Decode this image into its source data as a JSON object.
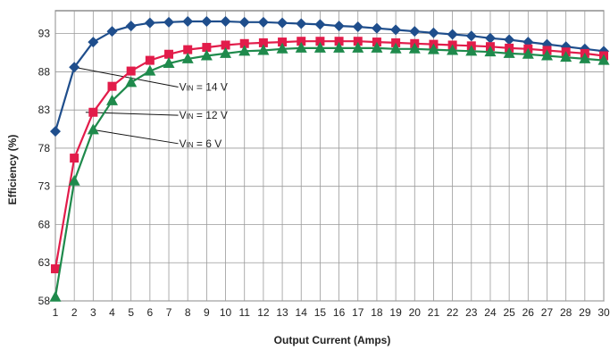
{
  "chart_data": {
    "type": "line",
    "title": "",
    "xlabel": "Output Current (Amps)",
    "ylabel": "Efficiency (%)",
    "x": [
      1,
      2,
      3,
      4,
      5,
      6,
      7,
      8,
      9,
      10,
      11,
      12,
      13,
      14,
      15,
      16,
      17,
      18,
      19,
      20,
      21,
      22,
      23,
      24,
      25,
      26,
      27,
      28,
      29,
      30
    ],
    "xlim": [
      1,
      30
    ],
    "ylim": [
      58,
      96
    ],
    "yticks": [
      58,
      63,
      68,
      73,
      78,
      83,
      88,
      93
    ],
    "grid": true,
    "series": [
      {
        "name": "VIN = 14 V",
        "color": "#1f4e8c",
        "marker": "diamond",
        "values": [
          80.2,
          88.6,
          91.9,
          93.3,
          94.0,
          94.4,
          94.5,
          94.6,
          94.6,
          94.6,
          94.5,
          94.5,
          94.4,
          94.3,
          94.2,
          94.0,
          93.9,
          93.7,
          93.5,
          93.3,
          93.1,
          92.9,
          92.7,
          92.4,
          92.2,
          91.9,
          91.6,
          91.3,
          91.0,
          90.7
        ]
      },
      {
        "name": "VIN = 12 V",
        "color": "#e21c4a",
        "marker": "square",
        "values": [
          62.2,
          76.7,
          82.7,
          86.1,
          88.1,
          89.5,
          90.3,
          90.9,
          91.2,
          91.5,
          91.7,
          91.8,
          91.9,
          92.0,
          92.0,
          92.0,
          92.0,
          91.9,
          91.8,
          91.7,
          91.6,
          91.5,
          91.4,
          91.3,
          91.1,
          91.0,
          90.8,
          90.6,
          90.4,
          90.1
        ]
      },
      {
        "name": "VIN = 6 V",
        "color": "#1f8a4c",
        "marker": "triangle",
        "values": [
          58.5,
          73.7,
          80.4,
          84.2,
          86.6,
          88.1,
          89.1,
          89.7,
          90.1,
          90.4,
          90.7,
          90.8,
          91.0,
          91.1,
          91.1,
          91.1,
          91.1,
          91.1,
          91.0,
          91.0,
          90.9,
          90.8,
          90.7,
          90.6,
          90.4,
          90.3,
          90.1,
          89.9,
          89.7,
          89.5
        ]
      }
    ],
    "annotations": {
      "vin_label": "V",
      "vin_subscript": "IN",
      "labels": [
        {
          "series": "VIN = 14 V",
          "text": " = 14 V",
          "from_x": 2,
          "to_x": 4.9,
          "label_y": 86.0
        },
        {
          "series": "VIN = 12 V",
          "text": " = 12 V",
          "from_x": 2.6,
          "to_x": 4.9,
          "label_y": 82.3
        },
        {
          "series": "VIN = 6 V",
          "text": " = 6 V",
          "from_x": 3,
          "to_x": 4.9,
          "label_y": 78.6
        }
      ]
    }
  }
}
